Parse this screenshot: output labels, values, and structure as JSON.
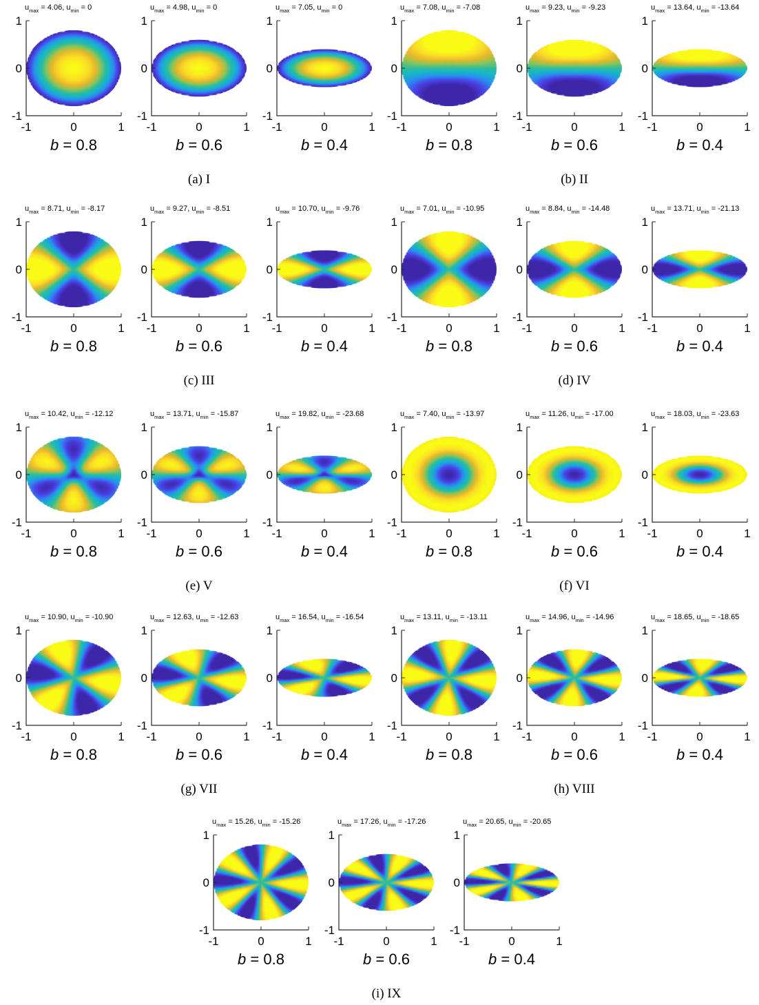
{
  "colormap": [
    "#3e26a8",
    "#4a42e8",
    "#2c8cf0",
    "#14b5cc",
    "#2ebd9c",
    "#8cc456",
    "#e8b82a",
    "#fadb28",
    "#f9fb15"
  ],
  "chart_data": [
    {
      "type": "heatmap",
      "caption": "(a)  I",
      "caption_id": "(a)",
      "caption_label": "I",
      "xlim": [
        -1,
        1
      ],
      "ylim": [
        -1,
        1
      ],
      "xticks": [
        "-1",
        "0",
        "1"
      ],
      "yticks": [
        "-1",
        "0",
        "1"
      ],
      "mode": {
        "radial": 0,
        "angular": 0,
        "peaks": 1
      },
      "panels": [
        {
          "b_label": "b",
          "b_value": "= 0.8",
          "b": 0.8,
          "u_max": "4.06",
          "u_min": "0"
        },
        {
          "b_label": "b",
          "b_value": "= 0.6",
          "b": 0.6,
          "u_max": "4.98",
          "u_min": "0"
        },
        {
          "b_label": "b",
          "b_value": "= 0.4",
          "b": 0.4,
          "u_max": "7.05",
          "u_min": "0"
        }
      ]
    },
    {
      "type": "heatmap",
      "caption": "(b)  II",
      "caption_id": "(b)",
      "caption_label": "II",
      "xlim": [
        -1,
        1
      ],
      "ylim": [
        -1,
        1
      ],
      "xticks": [
        "-1",
        "0",
        "1"
      ],
      "yticks": [
        "-1",
        "0",
        "1"
      ],
      "mode": {
        "radial": 0,
        "angular": 1,
        "orientation": "vertical"
      },
      "panels": [
        {
          "b_label": "b",
          "b_value": "= 0.8",
          "b": 0.8,
          "u_max": "7.08",
          "u_min": "-7.08"
        },
        {
          "b_label": "b",
          "b_value": "= 0.6",
          "b": 0.6,
          "u_max": "9.23",
          "u_min": "-9.23"
        },
        {
          "b_label": "b",
          "b_value": "= 0.4",
          "b": 0.4,
          "u_max": "13.64",
          "u_min": "-13.64"
        }
      ]
    },
    {
      "type": "heatmap",
      "caption": "(c)  III",
      "caption_id": "(c)",
      "caption_label": "III",
      "xlim": [
        -1,
        1
      ],
      "ylim": [
        -1,
        1
      ],
      "xticks": [
        "-1",
        "0",
        "1"
      ],
      "yticks": [
        "-1",
        "0",
        "1"
      ],
      "mode": {
        "radial": 0,
        "angular": 2,
        "orientation": "horizontal"
      },
      "panels": [
        {
          "b_label": "b",
          "b_value": "= 0.8",
          "b": 0.8,
          "u_max": "8.71",
          "u_min": "-8.17"
        },
        {
          "b_label": "b",
          "b_value": "= 0.6",
          "b": 0.6,
          "u_max": "9.27",
          "u_min": "-8.51"
        },
        {
          "b_label": "b",
          "b_value": "= 0.4",
          "b": 0.4,
          "u_max": "10.70",
          "u_min": "-9.76"
        }
      ]
    },
    {
      "type": "heatmap",
      "caption": "(d)  IV",
      "caption_id": "(d)",
      "caption_label": "IV",
      "xlim": [
        -1,
        1
      ],
      "ylim": [
        -1,
        1
      ],
      "xticks": [
        "-1",
        "0",
        "1"
      ],
      "yticks": [
        "-1",
        "0",
        "1"
      ],
      "mode": {
        "radial": 0,
        "angular": 2,
        "orientation": "vertical"
      },
      "panels": [
        {
          "b_label": "b",
          "b_value": "= 0.8",
          "b": 0.8,
          "u_max": "7.01",
          "u_min": "-10.95"
        },
        {
          "b_label": "b",
          "b_value": "= 0.6",
          "b": 0.6,
          "u_max": "8.84",
          "u_min": "-14.48"
        },
        {
          "b_label": "b",
          "b_value": "= 0.4",
          "b": 0.4,
          "u_max": "13.71",
          "u_min": "-21.13"
        }
      ]
    },
    {
      "type": "heatmap",
      "caption": "(e)  V",
      "caption_id": "(e)",
      "caption_label": "V",
      "xlim": [
        -1,
        1
      ],
      "ylim": [
        -1,
        1
      ],
      "xticks": [
        "-1",
        "0",
        "1"
      ],
      "yticks": [
        "-1",
        "0",
        "1"
      ],
      "mode": {
        "radial": 0,
        "angular": 3,
        "center": "min"
      },
      "panels": [
        {
          "b_label": "b",
          "b_value": "= 0.8",
          "b": 0.8,
          "u_max": "10.42",
          "u_min": "-12.12"
        },
        {
          "b_label": "b",
          "b_value": "= 0.6",
          "b": 0.6,
          "u_max": "13.71",
          "u_min": "-15.87"
        },
        {
          "b_label": "b",
          "b_value": "= 0.4",
          "b": 0.4,
          "u_max": "19.82",
          "u_min": "-23.68"
        }
      ]
    },
    {
      "type": "heatmap",
      "caption": "(f)  VI",
      "caption_id": "(f)",
      "caption_label": "VI",
      "xlim": [
        -1,
        1
      ],
      "ylim": [
        -1,
        1
      ],
      "xticks": [
        "-1",
        "0",
        "1"
      ],
      "yticks": [
        "-1",
        "0",
        "1"
      ],
      "mode": {
        "radial": 1,
        "angular": 0,
        "center": "min"
      },
      "panels": [
        {
          "b_label": "b",
          "b_value": "= 0.8",
          "b": 0.8,
          "u_max": "7.40",
          "u_min": "-13.97"
        },
        {
          "b_label": "b",
          "b_value": "= 0.6",
          "b": 0.6,
          "u_max": "11.26",
          "u_min": "-17.00"
        },
        {
          "b_label": "b",
          "b_value": "= 0.4",
          "b": 0.4,
          "u_max": "18.03",
          "u_min": "-23.63"
        }
      ]
    },
    {
      "type": "heatmap",
      "caption": "(g)  VII",
      "caption_id": "(g)",
      "caption_label": "VII",
      "xlim": [
        -1,
        1
      ],
      "ylim": [
        -1,
        1
      ],
      "xticks": [
        "-1",
        "0",
        "1"
      ],
      "yticks": [
        "-1",
        "0",
        "1"
      ],
      "mode": {
        "radial": 0,
        "angular": 3,
        "lobes": 6
      },
      "panels": [
        {
          "b_label": "b",
          "b_value": "= 0.8",
          "b": 0.8,
          "u_max": "10.90",
          "u_min": "-10.90"
        },
        {
          "b_label": "b",
          "b_value": "= 0.6",
          "b": 0.6,
          "u_max": "12.63",
          "u_min": "-12.63"
        },
        {
          "b_label": "b",
          "b_value": "= 0.4",
          "b": 0.4,
          "u_max": "16.54",
          "u_min": "-16.54"
        }
      ]
    },
    {
      "type": "heatmap",
      "caption": "(h)  VIII",
      "caption_id": "(h)",
      "caption_label": "VIII",
      "xlim": [
        -1,
        1
      ],
      "ylim": [
        -1,
        1
      ],
      "xticks": [
        "-1",
        "0",
        "1"
      ],
      "yticks": [
        "-1",
        "0",
        "1"
      ],
      "mode": {
        "radial": 0,
        "angular": 4,
        "lobes": 8
      },
      "panels": [
        {
          "b_label": "b",
          "b_value": "= 0.8",
          "b": 0.8,
          "u_max": "13.11",
          "u_min": "-13.11"
        },
        {
          "b_label": "b",
          "b_value": "= 0.6",
          "b": 0.6,
          "u_max": "14.96",
          "u_min": "-14.96"
        },
        {
          "b_label": "b",
          "b_value": "= 0.4",
          "b": 0.4,
          "u_max": "18.65",
          "u_min": "-18.65"
        }
      ]
    },
    {
      "type": "heatmap",
      "caption": "(i)  IX",
      "caption_id": "(i)",
      "caption_label": "IX",
      "xlim": [
        -1,
        1
      ],
      "ylim": [
        -1,
        1
      ],
      "xticks": [
        "-1",
        "0",
        "1"
      ],
      "yticks": [
        "-1",
        "0",
        "1"
      ],
      "mode": {
        "radial": 0,
        "angular": 5,
        "lobes": 10
      },
      "panels": [
        {
          "b_label": "b",
          "b_value": "= 0.8",
          "b": 0.8,
          "u_max": "15.26",
          "u_min": "-15.26"
        },
        {
          "b_label": "b",
          "b_value": "= 0.6",
          "b": 0.6,
          "u_max": "17.26",
          "u_min": "-17.26"
        },
        {
          "b_label": "b",
          "b_value": "= 0.4",
          "b": 0.4,
          "u_max": "20.65",
          "u_min": "-20.65"
        }
      ]
    }
  ]
}
